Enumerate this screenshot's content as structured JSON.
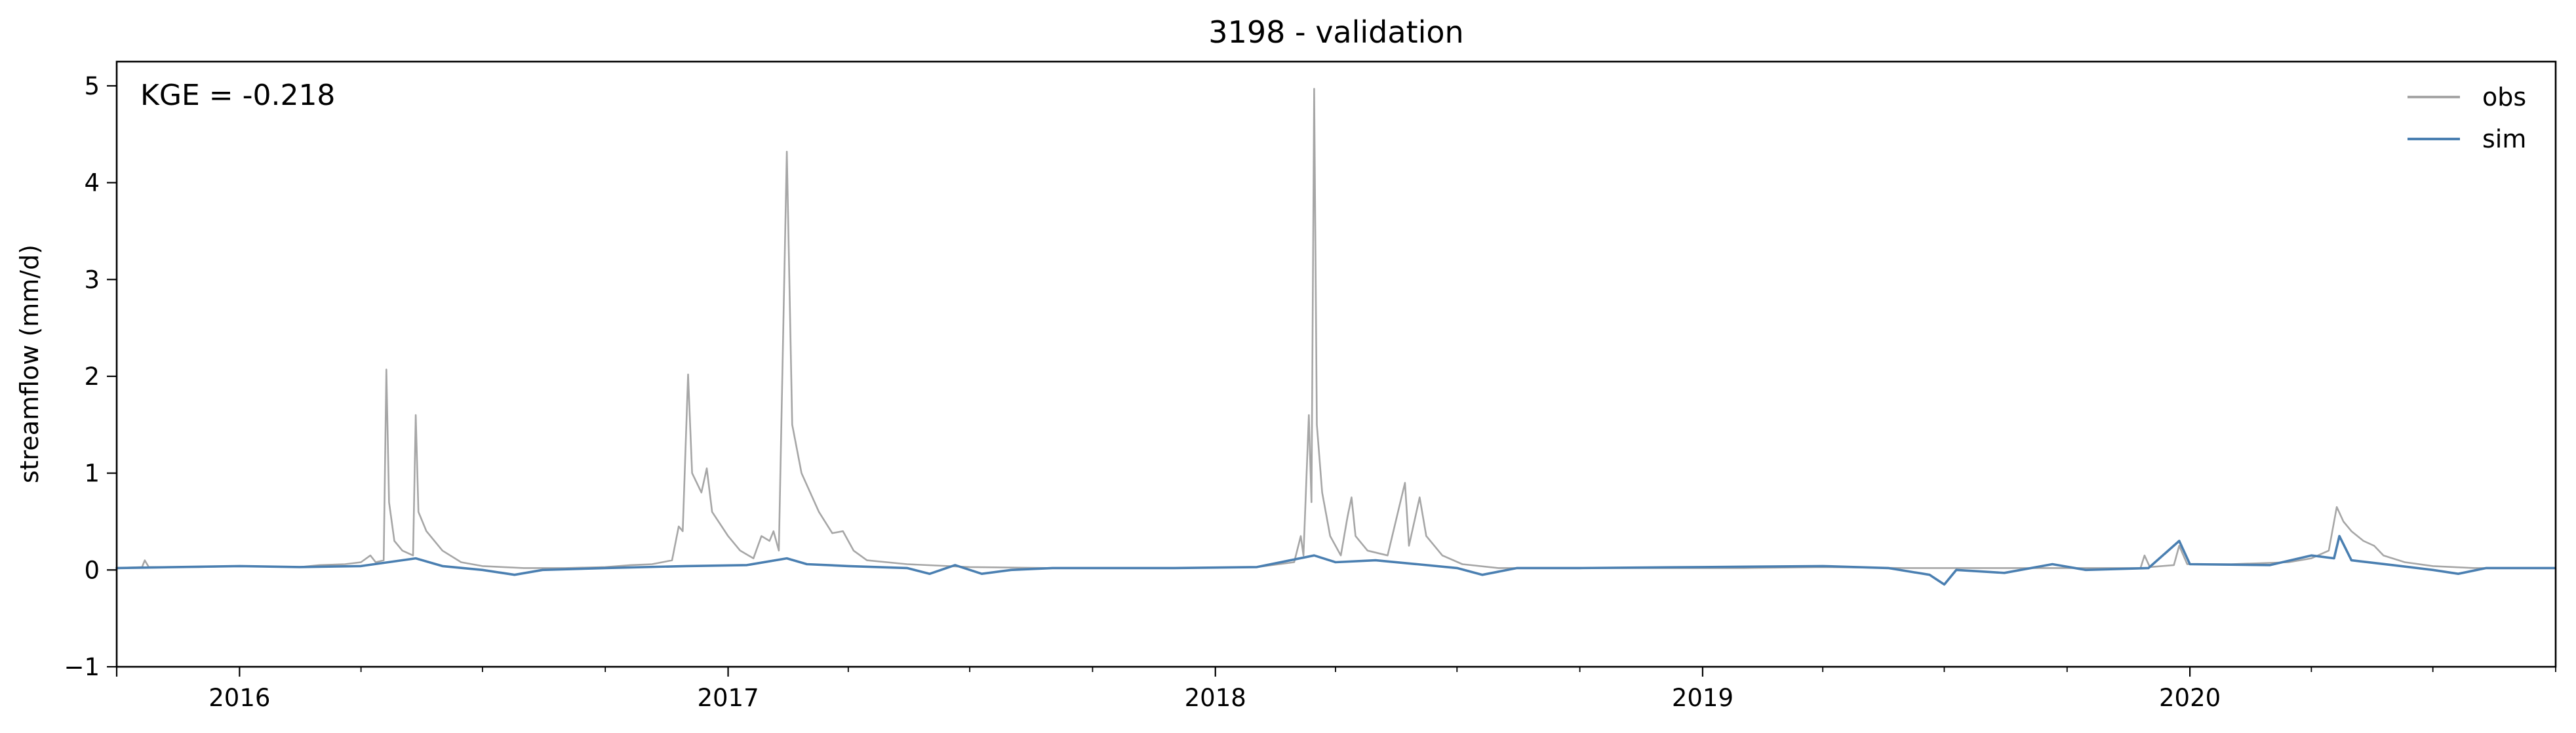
{
  "chart_data": {
    "type": "line",
    "title": "3198 - validation",
    "xlabel": "",
    "ylabel": "streamflow (mm/d)",
    "annotation": "KGE = -0.218",
    "xlim": [
      "2015-10-01",
      "2020-09-30"
    ],
    "ylim": [
      -1,
      5.25
    ],
    "x_tick_labels": [
      "2016",
      "2017",
      "2018",
      "2019",
      "2020"
    ],
    "x_ticks": [
      "2016-01-01",
      "2017-01-01",
      "2018-01-01",
      "2019-01-01",
      "2020-01-01"
    ],
    "y_ticks": [
      -1,
      0,
      1,
      2,
      3,
      4,
      5
    ],
    "y_tick_labels": [
      "−1",
      "0",
      "1",
      "2",
      "3",
      "4",
      "5"
    ],
    "grid": false,
    "legend_position": "top-right",
    "series": [
      {
        "name": "obs",
        "color": "#a6a6a6",
        "points": [
          [
            "2015-10-01",
            0.02
          ],
          [
            "2015-10-20",
            0.03
          ],
          [
            "2015-10-22",
            0.1
          ],
          [
            "2015-10-25",
            0.03
          ],
          [
            "2015-12-01",
            0.03
          ],
          [
            "2016-01-01",
            0.04
          ],
          [
            "2016-02-15",
            0.03
          ],
          [
            "2016-03-01",
            0.05
          ],
          [
            "2016-03-20",
            0.06
          ],
          [
            "2016-04-01",
            0.08
          ],
          [
            "2016-04-08",
            0.15
          ],
          [
            "2016-04-12",
            0.08
          ],
          [
            "2016-04-18",
            0.1
          ],
          [
            "2016-04-20",
            2.07
          ],
          [
            "2016-04-22",
            0.7
          ],
          [
            "2016-04-26",
            0.3
          ],
          [
            "2016-05-02",
            0.2
          ],
          [
            "2016-05-10",
            0.15
          ],
          [
            "2016-05-12",
            1.6
          ],
          [
            "2016-05-14",
            0.6
          ],
          [
            "2016-05-20",
            0.4
          ],
          [
            "2016-06-01",
            0.2
          ],
          [
            "2016-06-15",
            0.08
          ],
          [
            "2016-07-01",
            0.04
          ],
          [
            "2016-08-01",
            0.02
          ],
          [
            "2016-09-01",
            0.02
          ],
          [
            "2016-10-01",
            0.03
          ],
          [
            "2016-10-20",
            0.05
          ],
          [
            "2016-11-05",
            0.06
          ],
          [
            "2016-11-20",
            0.1
          ],
          [
            "2016-11-25",
            0.45
          ],
          [
            "2016-11-28",
            0.4
          ],
          [
            "2016-12-02",
            2.02
          ],
          [
            "2016-12-05",
            1.0
          ],
          [
            "2016-12-12",
            0.8
          ],
          [
            "2016-12-16",
            1.05
          ],
          [
            "2016-12-20",
            0.6
          ],
          [
            "2017-01-01",
            0.35
          ],
          [
            "2017-01-10",
            0.2
          ],
          [
            "2017-01-20",
            0.12
          ],
          [
            "2017-01-26",
            0.35
          ],
          [
            "2017-02-01",
            0.3
          ],
          [
            "2017-02-04",
            0.4
          ],
          [
            "2017-02-08",
            0.2
          ],
          [
            "2017-02-14",
            4.32
          ],
          [
            "2017-02-18",
            1.5
          ],
          [
            "2017-02-25",
            1.0
          ],
          [
            "2017-03-10",
            0.6
          ],
          [
            "2017-03-20",
            0.38
          ],
          [
            "2017-03-28",
            0.4
          ],
          [
            "2017-04-05",
            0.2
          ],
          [
            "2017-04-15",
            0.1
          ],
          [
            "2017-05-15",
            0.06
          ],
          [
            "2017-07-01",
            0.03
          ],
          [
            "2017-09-01",
            0.02
          ],
          [
            "2017-12-01",
            0.02
          ],
          [
            "2018-02-01",
            0.03
          ],
          [
            "2018-03-01",
            0.08
          ],
          [
            "2018-03-06",
            0.35
          ],
          [
            "2018-03-08",
            0.15
          ],
          [
            "2018-03-12",
            1.6
          ],
          [
            "2018-03-14",
            0.7
          ],
          [
            "2018-03-16",
            4.97
          ],
          [
            "2018-03-18",
            1.5
          ],
          [
            "2018-03-22",
            0.8
          ],
          [
            "2018-03-28",
            0.35
          ],
          [
            "2018-04-05",
            0.15
          ],
          [
            "2018-04-10",
            0.55
          ],
          [
            "2018-04-13",
            0.75
          ],
          [
            "2018-04-16",
            0.35
          ],
          [
            "2018-04-25",
            0.2
          ],
          [
            "2018-05-10",
            0.15
          ],
          [
            "2018-05-23",
            0.9
          ],
          [
            "2018-05-26",
            0.25
          ],
          [
            "2018-06-03",
            0.75
          ],
          [
            "2018-06-08",
            0.35
          ],
          [
            "2018-06-20",
            0.15
          ],
          [
            "2018-07-05",
            0.06
          ],
          [
            "2018-08-01",
            0.02
          ],
          [
            "2018-10-01",
            0.02
          ],
          [
            "2019-02-01",
            0.02
          ],
          [
            "2019-04-01",
            0.03
          ],
          [
            "2019-06-01",
            0.02
          ],
          [
            "2019-09-01",
            0.02
          ],
          [
            "2019-11-25",
            0.02
          ],
          [
            "2019-11-28",
            0.15
          ],
          [
            "2019-12-02",
            0.03
          ],
          [
            "2019-12-20",
            0.05
          ],
          [
            "2019-12-24",
            0.25
          ],
          [
            "2019-12-30",
            0.06
          ],
          [
            "2020-02-01",
            0.06
          ],
          [
            "2020-03-15",
            0.08
          ],
          [
            "2020-04-01",
            0.12
          ],
          [
            "2020-04-14",
            0.2
          ],
          [
            "2020-04-20",
            0.65
          ],
          [
            "2020-04-25",
            0.5
          ],
          [
            "2020-05-01",
            0.4
          ],
          [
            "2020-05-10",
            0.3
          ],
          [
            "2020-05-18",
            0.25
          ],
          [
            "2020-05-25",
            0.15
          ],
          [
            "2020-06-10",
            0.08
          ],
          [
            "2020-07-01",
            0.04
          ],
          [
            "2020-08-01",
            0.02
          ],
          [
            "2020-09-30",
            0.02
          ]
        ]
      },
      {
        "name": "sim",
        "color": "#4a7fb1",
        "points": [
          [
            "2015-10-01",
            0.02
          ],
          [
            "2015-11-15",
            0.03
          ],
          [
            "2016-01-01",
            0.04
          ],
          [
            "2016-02-15",
            0.03
          ],
          [
            "2016-04-01",
            0.04
          ],
          [
            "2016-05-12",
            0.12
          ],
          [
            "2016-06-01",
            0.04
          ],
          [
            "2016-07-01",
            0.0
          ],
          [
            "2016-07-25",
            -0.05
          ],
          [
            "2016-08-15",
            0.0
          ],
          [
            "2016-10-01",
            0.02
          ],
          [
            "2016-12-01",
            0.04
          ],
          [
            "2017-01-15",
            0.05
          ],
          [
            "2017-02-14",
            0.12
          ],
          [
            "2017-03-01",
            0.06
          ],
          [
            "2017-04-01",
            0.04
          ],
          [
            "2017-05-15",
            0.02
          ],
          [
            "2017-06-01",
            -0.04
          ],
          [
            "2017-06-20",
            0.05
          ],
          [
            "2017-07-10",
            -0.04
          ],
          [
            "2017-08-01",
            0.0
          ],
          [
            "2017-09-01",
            0.02
          ],
          [
            "2017-12-01",
            0.02
          ],
          [
            "2018-02-01",
            0.03
          ],
          [
            "2018-03-16",
            0.15
          ],
          [
            "2018-04-01",
            0.08
          ],
          [
            "2018-05-01",
            0.1
          ],
          [
            "2018-06-01",
            0.06
          ],
          [
            "2018-07-01",
            0.02
          ],
          [
            "2018-07-20",
            -0.05
          ],
          [
            "2018-08-15",
            0.02
          ],
          [
            "2018-10-01",
            0.02
          ],
          [
            "2019-01-01",
            0.03
          ],
          [
            "2019-04-01",
            0.04
          ],
          [
            "2019-05-20",
            0.02
          ],
          [
            "2019-06-20",
            -0.05
          ],
          [
            "2019-07-01",
            -0.15
          ],
          [
            "2019-07-10",
            0.0
          ],
          [
            "2019-08-15",
            -0.03
          ],
          [
            "2019-09-20",
            0.06
          ],
          [
            "2019-10-15",
            0.0
          ],
          [
            "2019-12-01",
            0.02
          ],
          [
            "2019-12-24",
            0.3
          ],
          [
            "2020-01-01",
            0.06
          ],
          [
            "2020-03-01",
            0.05
          ],
          [
            "2020-04-01",
            0.15
          ],
          [
            "2020-04-18",
            0.12
          ],
          [
            "2020-04-22",
            0.35
          ],
          [
            "2020-05-01",
            0.1
          ],
          [
            "2020-06-01",
            0.05
          ],
          [
            "2020-07-01",
            0.0
          ],
          [
            "2020-07-20",
            -0.04
          ],
          [
            "2020-08-10",
            0.02
          ],
          [
            "2020-09-30",
            0.02
          ]
        ]
      }
    ]
  }
}
